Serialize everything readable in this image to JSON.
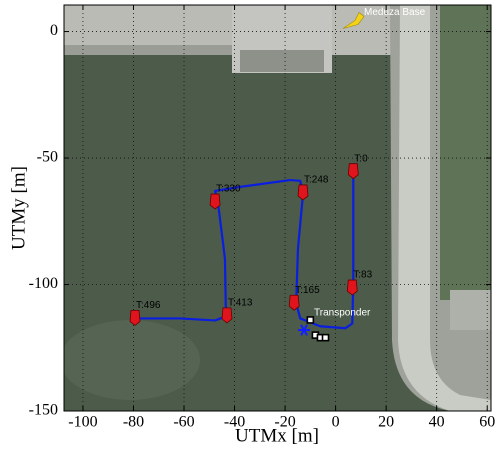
{
  "chart_data": {
    "type": "line",
    "xlabel": "UTMx [m]",
    "ylabel": "UTMy  [m]",
    "xlim": [
      -107.5,
      61.5
    ],
    "ylim": [
      -150,
      10.5
    ],
    "xticks": [
      -100,
      -80,
      -60,
      -40,
      -20,
      0,
      20,
      40,
      60
    ],
    "yticks": [
      -150,
      -100,
      -50,
      0
    ],
    "grid": true,
    "color": "#0a1ee0",
    "x": [
      7,
      7,
      6.6,
      3.8,
      -6.1,
      -14,
      -15.6,
      -14.9,
      -12.9,
      -14,
      -18,
      -37.8,
      -47.7,
      -46.5,
      -43.8,
      -43.4,
      -47.7,
      -61.6,
      -77.4,
      -80.6
    ],
    "y": [
      -54.3,
      -99.6,
      -115.4,
      -117.3,
      -116.5,
      -113.4,
      -107.5,
      -85.8,
      -64.2,
      -59,
      -58.7,
      -61.4,
      -63,
      -68.1,
      -89.8,
      -112.6,
      -114.2,
      -113.4,
      -113.4,
      -114.2
    ],
    "annotations": [
      {
        "text": "T:0",
        "x": 7,
        "y": -55
      },
      {
        "text": "T:83",
        "x": 6.6,
        "y": -101
      },
      {
        "text": "T:165",
        "x": -16.4,
        "y": -107
      },
      {
        "text": "T:248",
        "x": -12.9,
        "y": -63.4
      },
      {
        "text": "T:330",
        "x": -47.7,
        "y": -67
      },
      {
        "text": "T:413",
        "x": -43,
        "y": -112
      },
      {
        "text": "T:496",
        "x": -79.4,
        "y": -113
      }
    ],
    "transponder": {
      "text": "Transponder",
      "x": -12.5,
      "y": -118
    },
    "squares": {
      "x": [
        -10,
        -8,
        -6,
        -4
      ],
      "y": [
        -114,
        -120,
        -121,
        -121
      ]
    },
    "base": {
      "text": "Meduza Base",
      "x": 5.7,
      "y": 2.8
    }
  }
}
